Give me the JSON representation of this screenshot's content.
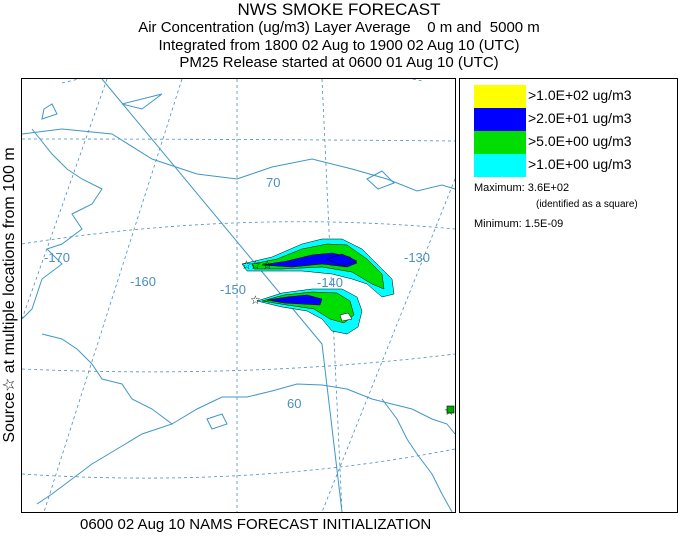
{
  "title": {
    "line1": "NWS SMOKE FORECAST",
    "line2": "Air Concentration (ug/m3) Layer Average    0 m and  5000 m",
    "line3": "Integrated from 1800 02 Aug to 1900 02 Aug 10 (UTC)",
    "line4": "PM25 Release started at 0600 01 Aug 10 (UTC)"
  },
  "side_label": "Source☆  at multiple locations   from   100 m",
  "footer": "0600 02 Aug 10 NAMS FORECAST INITIALIZATION",
  "map": {
    "longitude_labels": [
      "-170",
      "-160",
      "-150",
      "-140",
      "-130"
    ],
    "latitude_labels": [
      "70",
      "60"
    ],
    "colors": {
      "coastline": "#3f97c8",
      "graticule": "#4a8fc0",
      "level_1": "#ffff00",
      "level_2": "#0000ff",
      "level_3": "#00dd00",
      "level_4": "#00ffff"
    }
  },
  "legend": {
    "items": [
      {
        "label": ">1.0E+02 ug/m3",
        "color": "#ffff00"
      },
      {
        "label": ">2.0E+01 ug/m3",
        "color": "#0000ff"
      },
      {
        "label": ">5.0E+00 ug/m3",
        "color": "#00dd00"
      },
      {
        "label": ">1.0E+00 ug/m3",
        "color": "#00ffff"
      }
    ],
    "maximum_label": "Maximum:",
    "maximum_value": "3.6E+02",
    "maximum_note": "(identified as a square)",
    "minimum_label": "Minimum:",
    "minimum_value": "1.5E-09"
  }
}
